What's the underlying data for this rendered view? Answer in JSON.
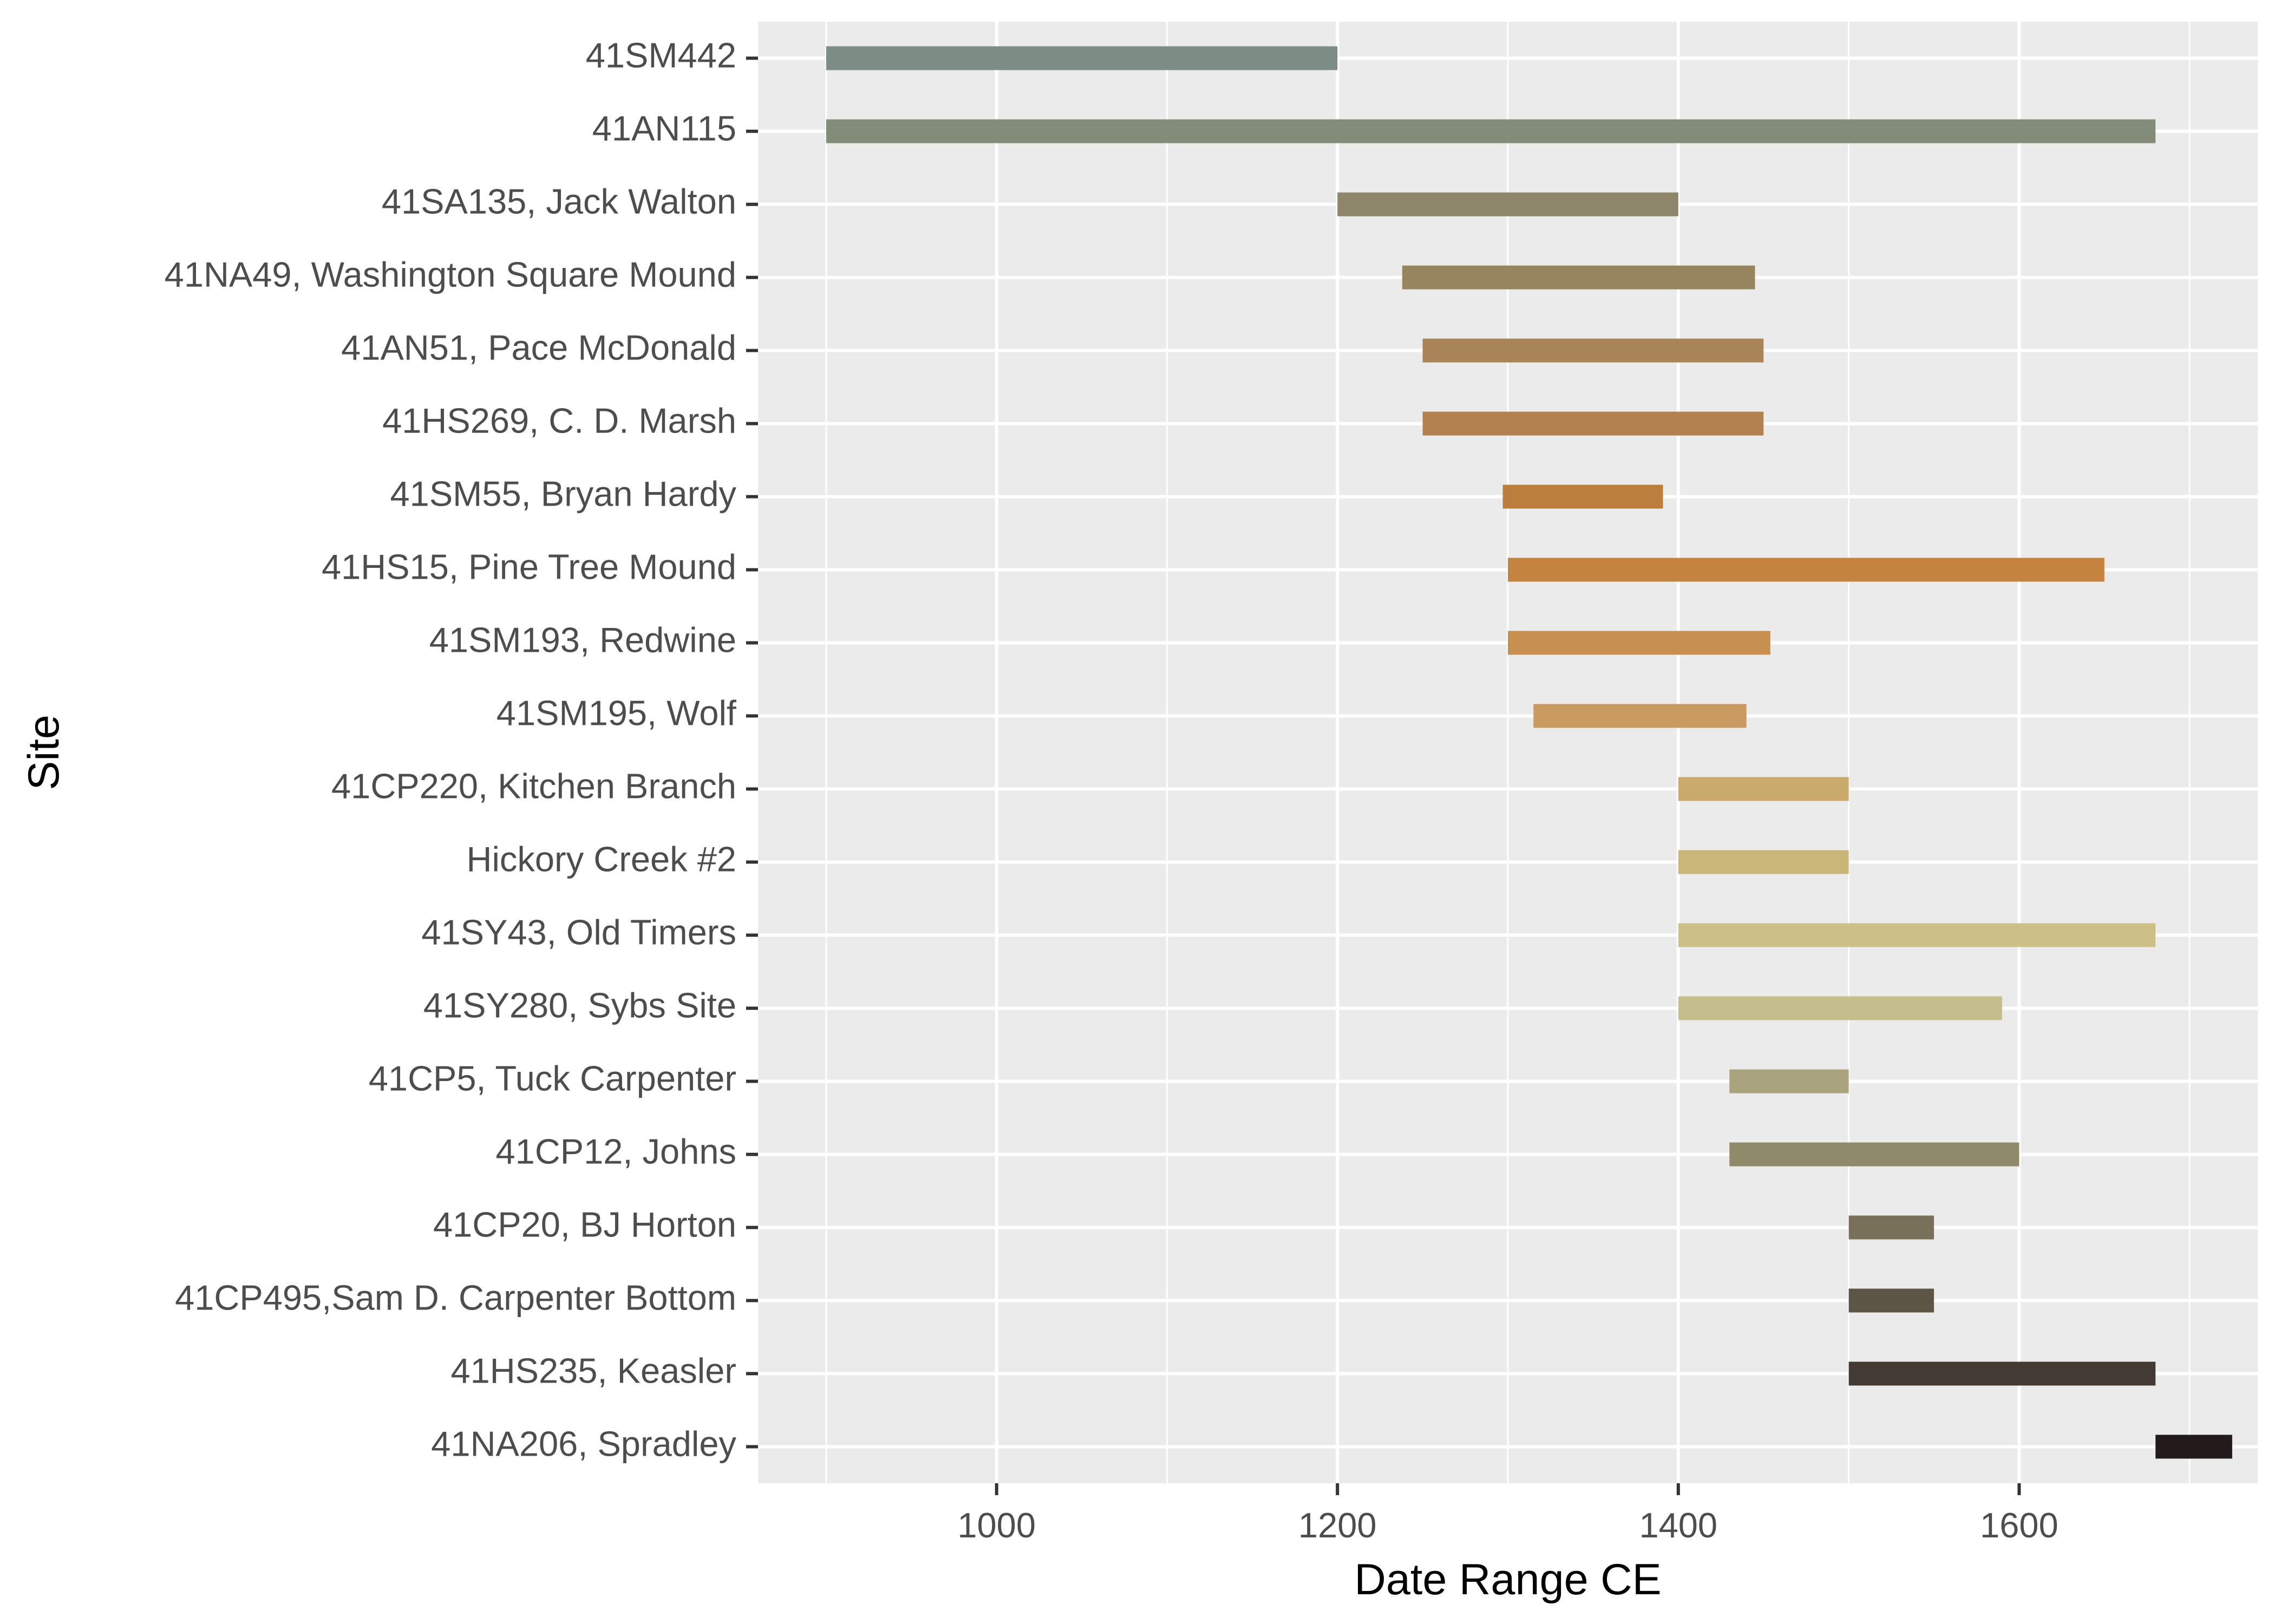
{
  "chart_data": {
    "type": "bar",
    "orientation": "horizontal-range",
    "xlabel": "Date Range CE",
    "ylabel": "Site",
    "xlim": [
      860,
      1740
    ],
    "x_ticks": [
      1000,
      1200,
      1400,
      1600
    ],
    "grid": true,
    "legend": "none",
    "panel_background": "#ebebeb",
    "gridline_color": "#ffffff",
    "series": [
      {
        "site": "41SM442",
        "start": 900,
        "end": 1200,
        "color": "#7b8d85"
      },
      {
        "site": "41AN115",
        "start": 900,
        "end": 1680,
        "color": "#838b79"
      },
      {
        "site": "41SA135, Jack Walton",
        "start": 1200,
        "end": 1400,
        "color": "#8d866b"
      },
      {
        "site": "41NA49, Washington Square Mound",
        "start": 1238,
        "end": 1445,
        "color": "#978560"
      },
      {
        "site": "41AN51, Pace McDonald",
        "start": 1250,
        "end": 1450,
        "color": "#a88458"
      },
      {
        "site": "41HS269, C. D. Marsh",
        "start": 1250,
        "end": 1450,
        "color": "#b38150"
      },
      {
        "site": "41SM55, Bryan Hardy",
        "start": 1297,
        "end": 1391,
        "color": "#bc7e3c"
      },
      {
        "site": "41HS15, Pine Tree Mound",
        "start": 1300,
        "end": 1650,
        "color": "#c4843f"
      },
      {
        "site": "41SM193, Redwine",
        "start": 1300,
        "end": 1454,
        "color": "#c78f50"
      },
      {
        "site": "41SM195, Wolf",
        "start": 1315,
        "end": 1440,
        "color": "#c99b60"
      },
      {
        "site": "41CP220, Kitchen Branch",
        "start": 1400,
        "end": 1500,
        "color": "#cbaa6e"
      },
      {
        "site": "Hickory Creek #2",
        "start": 1400,
        "end": 1500,
        "color": "#cbb67a"
      },
      {
        "site": "41SY43, Old Timers",
        "start": 1400,
        "end": 1680,
        "color": "#ccbf88"
      },
      {
        "site": "41SY280, Sybs Site",
        "start": 1400,
        "end": 1590,
        "color": "#c4bd8c"
      },
      {
        "site": "41CP5, Tuck Carpenter",
        "start": 1430,
        "end": 1500,
        "color": "#a9a47d"
      },
      {
        "site": "41CP12, Johns",
        "start": 1430,
        "end": 1600,
        "color": "#8f8a69"
      },
      {
        "site": "41CP20, BJ Horton",
        "start": 1500,
        "end": 1550,
        "color": "#787059"
      },
      {
        "site": "41CP495,Sam D. Carpenter Bottom",
        "start": 1500,
        "end": 1550,
        "color": "#5d5546"
      },
      {
        "site": "41HS235, Keasler",
        "start": 1500,
        "end": 1680,
        "color": "#433b33"
      },
      {
        "site": "41NA206, Spradley",
        "start": 1680,
        "end": 1725,
        "color": "#231b1b"
      }
    ]
  }
}
